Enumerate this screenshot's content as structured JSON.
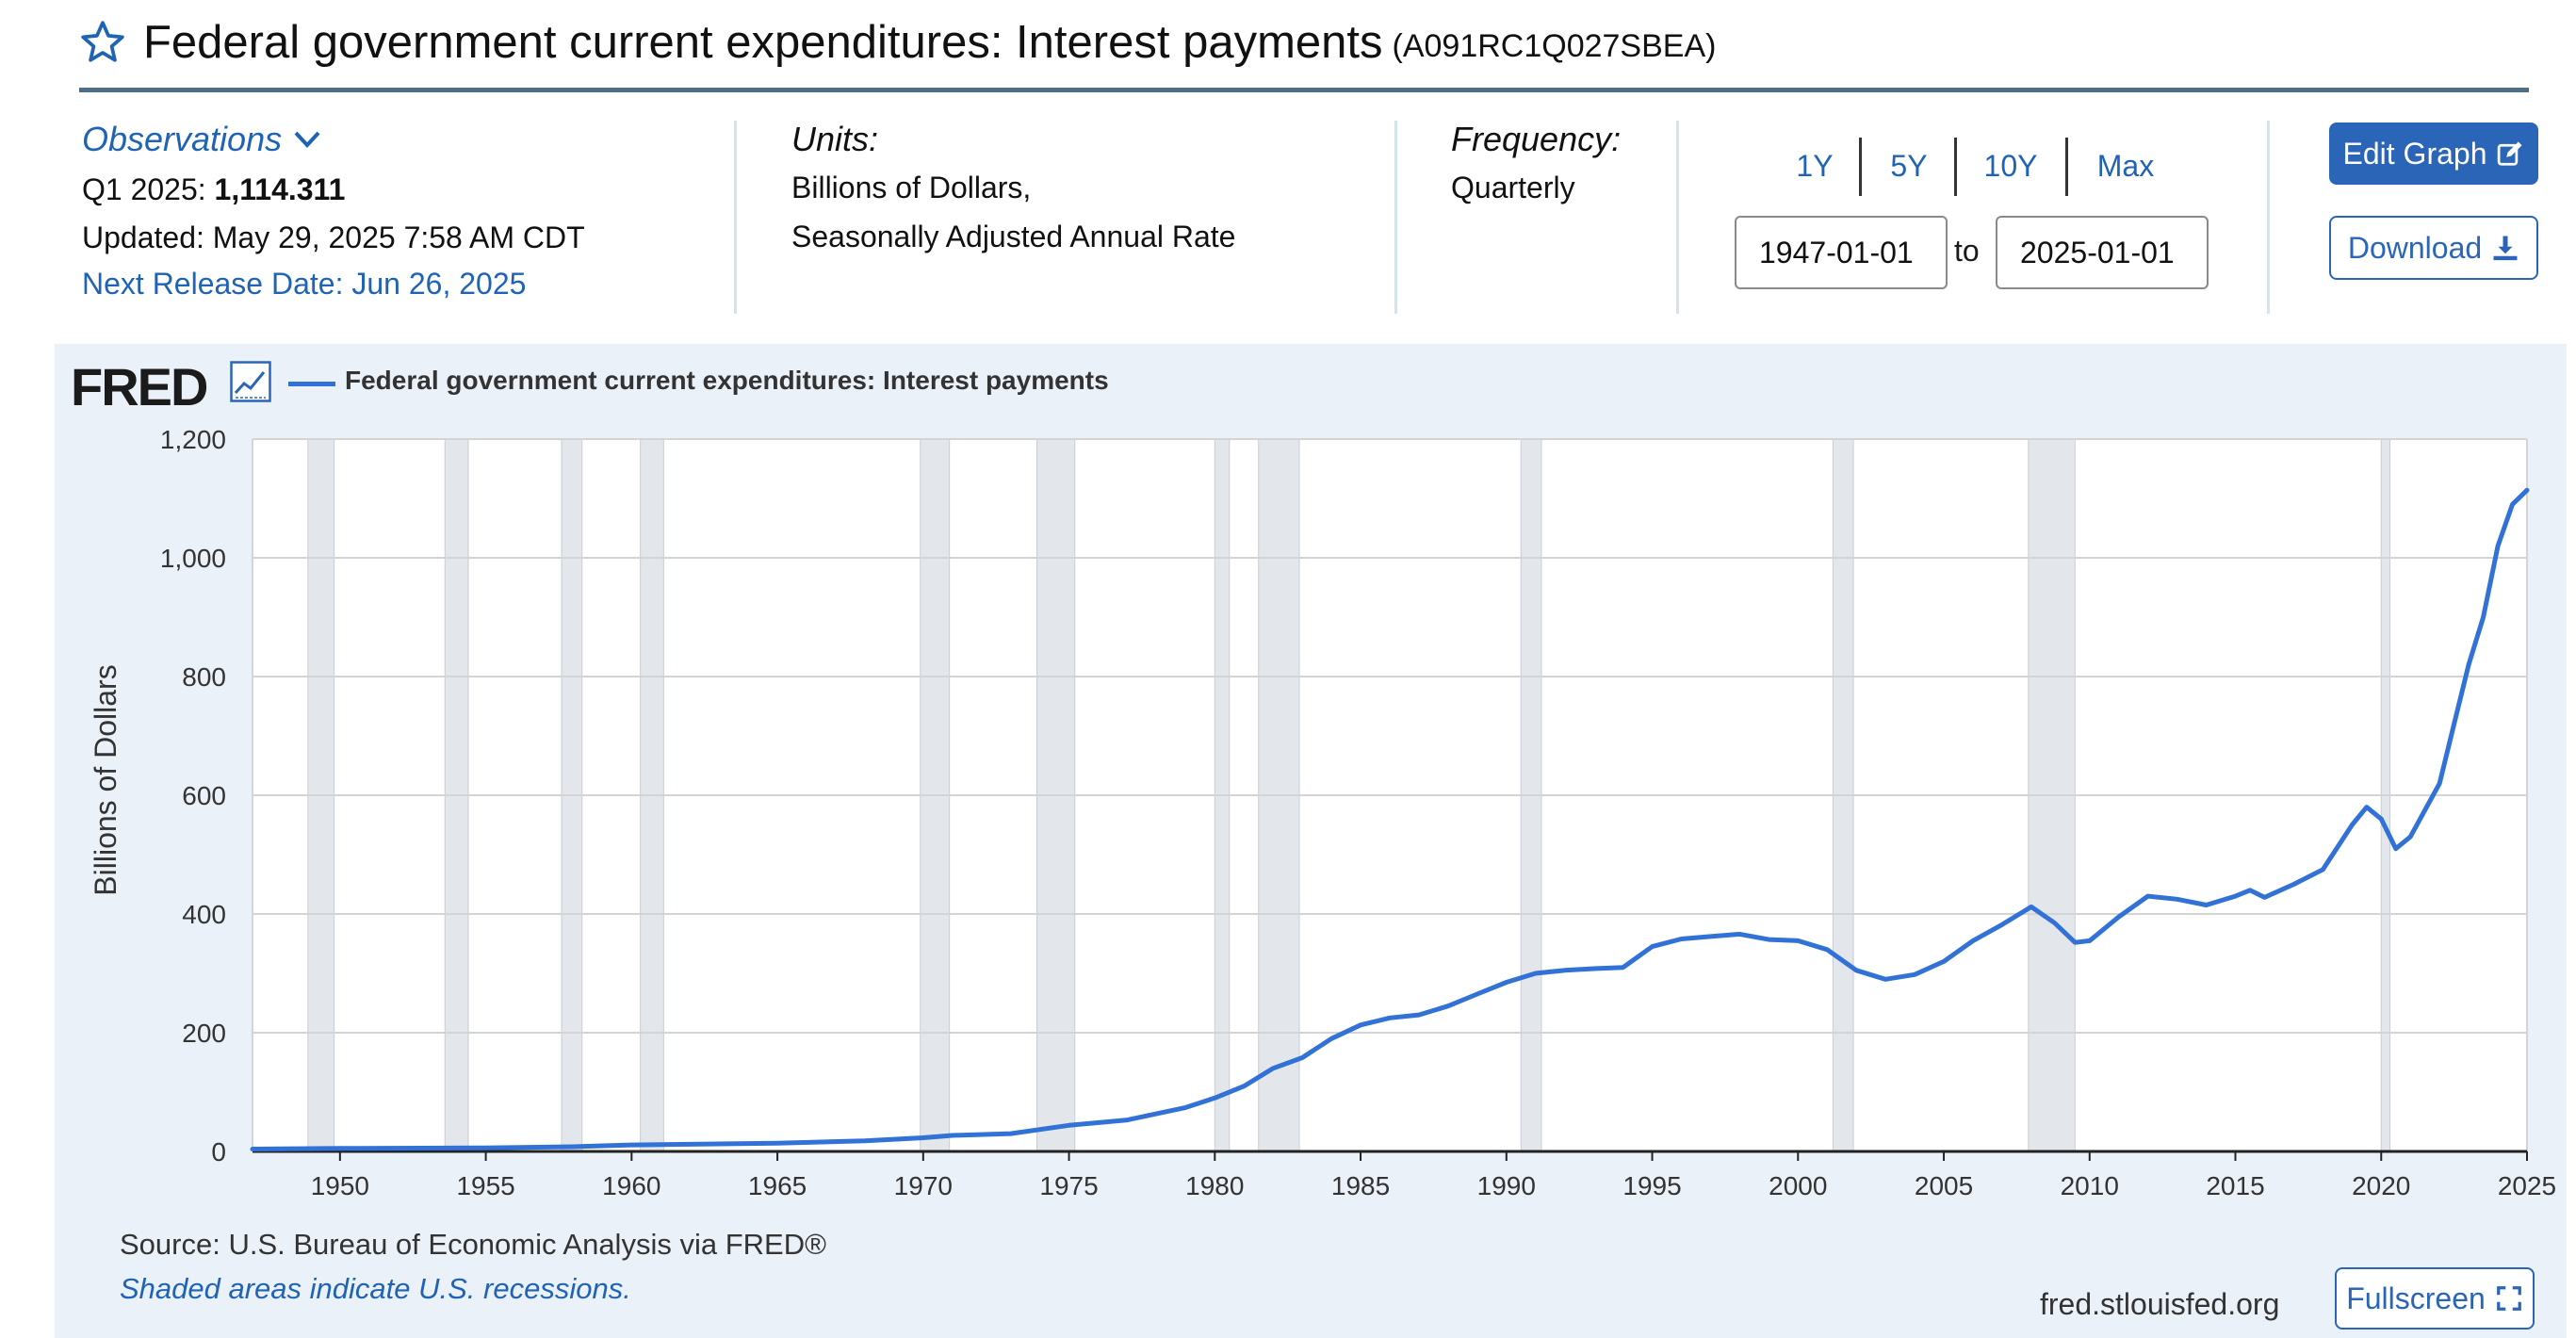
{
  "header": {
    "title": "Federal government current expenditures: Interest payments",
    "series_id": "(A091RC1Q027SBEA)"
  },
  "observations": {
    "link_label": "Observations",
    "latest_date": "Q1 2025:",
    "latest_value": "1,114.311",
    "updated": "Updated: May 29, 2025 7:58 AM CDT",
    "next_release": "Next Release Date: Jun 26, 2025"
  },
  "units": {
    "label": "Units:",
    "line1": "Billions of Dollars,",
    "line2": "Seasonally Adjusted Annual Rate"
  },
  "frequency": {
    "label": "Frequency:",
    "value": "Quarterly"
  },
  "range": {
    "buttons": [
      "1Y",
      "5Y",
      "10Y",
      "Max"
    ],
    "start": "1947-01-01",
    "to_label": "to",
    "end": "2025-01-01"
  },
  "actions": {
    "edit_graph": "Edit Graph",
    "download": "Download",
    "fullscreen": "Fullscreen"
  },
  "footer": {
    "source": "Source: U.S. Bureau of Economic Analysis via FRED®",
    "recession_note": "Shaded areas indicate U.S. recessions.",
    "site": "fred.stlouisfed.org"
  },
  "logo": "FRED",
  "colors": {
    "series": "#3272d6",
    "recession_shade": "#e3e7ec",
    "link": "#1f63b5",
    "button": "#2a65b8"
  },
  "chart_data": {
    "type": "line",
    "legend": "Federal government current expenditures: Interest payments",
    "legend_position": "top-left",
    "ylabel": "Billions of Dollars",
    "ylim": [
      0,
      1200
    ],
    "yticks": [
      0,
      200,
      400,
      600,
      800,
      1000,
      1200
    ],
    "yticklabels": [
      "0",
      "200",
      "400",
      "600",
      "800",
      "1,000",
      "1,200"
    ],
    "xlim": [
      1947.0,
      2025.0
    ],
    "xticks": [
      1950,
      1955,
      1960,
      1965,
      1970,
      1975,
      1980,
      1985,
      1990,
      1995,
      2000,
      2005,
      2010,
      2015,
      2020,
      2025
    ],
    "grid": true,
    "recessions": [
      [
        1948.9,
        1949.8
      ],
      [
        1953.6,
        1954.4
      ],
      [
        1957.6,
        1958.3
      ],
      [
        1960.3,
        1961.1
      ],
      [
        1969.9,
        1970.9
      ],
      [
        1973.9,
        1975.2
      ],
      [
        1980.0,
        1980.5
      ],
      [
        1981.5,
        1982.9
      ],
      [
        1990.5,
        1991.2
      ],
      [
        2001.2,
        2001.9
      ],
      [
        2007.9,
        2009.5
      ],
      [
        2020.0,
        2020.3
      ]
    ],
    "series": [
      {
        "name": "Federal government current expenditures: Interest payments",
        "x": [
          1947.0,
          1950.0,
          1955.0,
          1958.0,
          1960.0,
          1965.0,
          1968.0,
          1970.0,
          1971.0,
          1973.0,
          1975.0,
          1977.0,
          1979.0,
          1980.0,
          1981.0,
          1982.0,
          1983.0,
          1984.0,
          1985.0,
          1986.0,
          1987.0,
          1988.0,
          1989.0,
          1990.0,
          1991.0,
          1992.0,
          1993.0,
          1994.0,
          1995.0,
          1996.0,
          1997.0,
          1998.0,
          1999.0,
          2000.0,
          2001.0,
          2002.0,
          2003.0,
          2004.0,
          2005.0,
          2006.0,
          2007.0,
          2008.0,
          2008.8,
          2009.5,
          2010.0,
          2011.0,
          2012.0,
          2013.0,
          2014.0,
          2015.0,
          2015.5,
          2016.0,
          2017.0,
          2018.0,
          2019.0,
          2019.5,
          2020.0,
          2020.5,
          2021.0,
          2022.0,
          2022.5,
          2023.0,
          2023.5,
          2024.0,
          2024.5,
          2025.0
        ],
        "y": [
          4,
          5,
          6,
          8,
          11,
          14,
          18,
          23,
          27,
          30,
          44,
          53,
          74,
          90,
          110,
          140,
          158,
          190,
          213,
          225,
          230,
          245,
          265,
          285,
          300,
          305,
          308,
          310,
          345,
          358,
          362,
          366,
          357,
          355,
          340,
          305,
          290,
          298,
          320,
          355,
          382,
          412,
          385,
          352,
          355,
          395,
          430,
          425,
          415,
          430,
          440,
          428,
          450,
          475,
          550,
          580,
          560,
          510,
          530,
          620,
          720,
          820,
          900,
          1020,
          1090,
          1114
        ]
      }
    ]
  }
}
